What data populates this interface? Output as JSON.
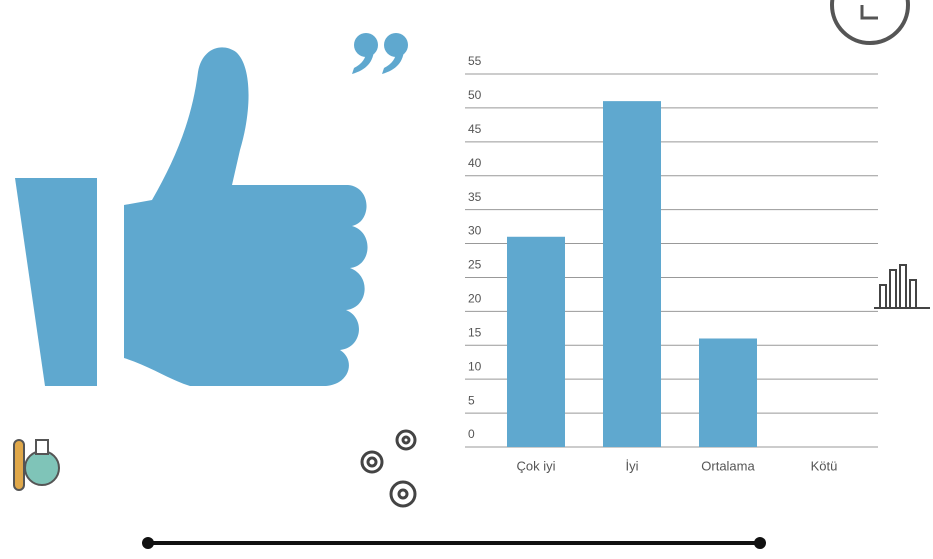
{
  "chart_data": {
    "type": "bar",
    "categories": [
      "Çok iyi",
      "İyi",
      "Ortalama",
      "Kötü"
    ],
    "values": [
      31,
      51,
      16,
      0
    ],
    "color": "#5fa8cf",
    "ylim": [
      0,
      55
    ],
    "yticks": [
      0,
      5,
      10,
      15,
      20,
      25,
      30,
      35,
      40,
      45,
      50,
      55
    ],
    "grid": true
  }
}
